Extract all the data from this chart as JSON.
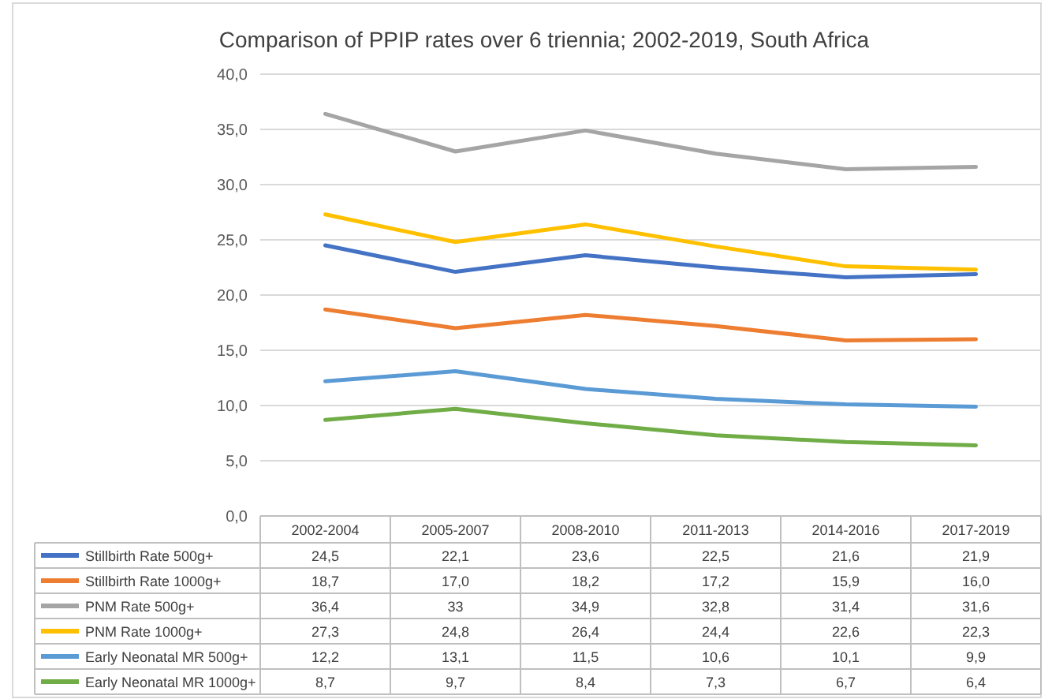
{
  "chart_data": {
    "type": "line",
    "title": "Comparison of PPIP rates over 6 triennia; 2002-2019, South Africa",
    "categories": [
      "2002-2004",
      "2005-2007",
      "2008-2010",
      "2011-2013",
      "2014-2016",
      "2017-2019"
    ],
    "ylim": [
      0,
      40
    ],
    "yticks": [
      {
        "value": 0,
        "label": "0,0"
      },
      {
        "value": 5,
        "label": "5,0"
      },
      {
        "value": 10,
        "label": "10,0"
      },
      {
        "value": 15,
        "label": "15,0"
      },
      {
        "value": 20,
        "label": "20,0"
      },
      {
        "value": 25,
        "label": "25,0"
      },
      {
        "value": 30,
        "label": "30,0"
      },
      {
        "value": 35,
        "label": "35,0"
      },
      {
        "value": 40,
        "label": "40,0"
      }
    ],
    "grid": "y",
    "legend": "bottom",
    "marker": "none",
    "line_style": "solid",
    "series": [
      {
        "name": "Stillbirth Rate 500g+",
        "color": "#4472c4",
        "values": [
          24.5,
          22.1,
          23.6,
          22.5,
          21.6,
          21.9
        ],
        "value_labels": [
          "24,5",
          "22,1",
          "23,6",
          "22,5",
          "21,6",
          "21,9"
        ]
      },
      {
        "name": "Stillbirth Rate 1000g+",
        "color": "#ed7d31",
        "values": [
          18.7,
          17.0,
          18.2,
          17.2,
          15.9,
          16.0
        ],
        "value_labels": [
          "18,7",
          "17,0",
          "18,2",
          "17,2",
          "15,9",
          "16,0"
        ]
      },
      {
        "name": "PNM Rate 500g+",
        "color": "#a5a5a5",
        "values": [
          36.4,
          33,
          34.9,
          32.8,
          31.4,
          31.6
        ],
        "value_labels": [
          "36,4",
          "33",
          "34,9",
          "32,8",
          "31,4",
          "31,6"
        ]
      },
      {
        "name": "PNM Rate 1000g+",
        "color": "#ffc000",
        "values": [
          27.3,
          24.8,
          26.4,
          24.4,
          22.6,
          22.3
        ],
        "value_labels": [
          "27,3",
          "24,8",
          "26,4",
          "24,4",
          "22,6",
          "22,3"
        ]
      },
      {
        "name": "Early Neonatal MR 500g+",
        "color": "#5b9bd5",
        "values": [
          12.2,
          13.1,
          11.5,
          10.6,
          10.1,
          9.9
        ],
        "value_labels": [
          "12,2",
          "13,1",
          "11,5",
          "10,6",
          "10,1",
          "9,9"
        ]
      },
      {
        "name": "Early Neonatal MR 1000g+",
        "color": "#70ad47",
        "values": [
          8.7,
          9.7,
          8.4,
          7.3,
          6.7,
          6.4
        ],
        "value_labels": [
          "8,7",
          "9,7",
          "8,4",
          "7,3",
          "6,7",
          "6,4"
        ]
      }
    ]
  }
}
